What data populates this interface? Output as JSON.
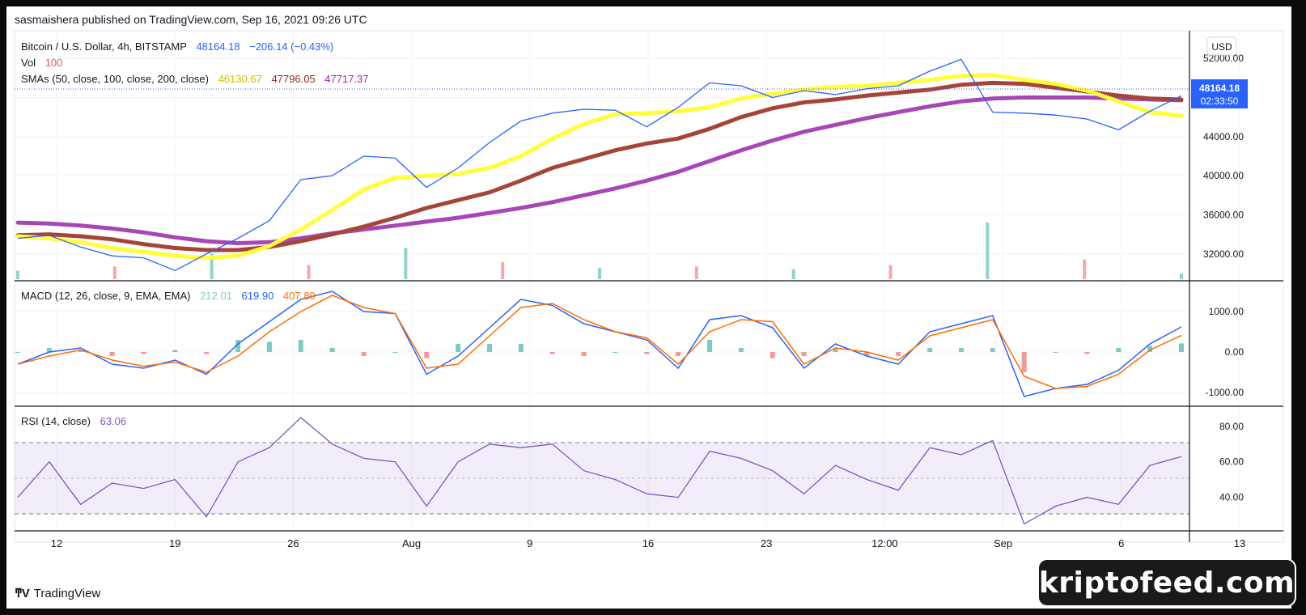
{
  "publisher": "sasmaishera published on TradingView.com, Sep 16, 2021 09:26 UTC",
  "legend": {
    "symbol": "Bitcoin / U.S. Dollar, 4h, BITSTAMP",
    "price": "48164.18",
    "change": "−206.14 (−0.43%)",
    "vol_label": "Vol",
    "vol_value": "100",
    "sma_label": "SMAs (50, close, 100, close, 200, close)",
    "sma50_value": "46130.67",
    "sma100_value": "47796.05",
    "sma200_value": "47717.37",
    "macd_label": "MACD (12, 26, close, 9, EMA, EMA)",
    "macd_hist_value": "212.01",
    "macd_value": "619.90",
    "macd_signal_value": "407.89",
    "rsi_label": "RSI (14, close)",
    "rsi_value": "63.06"
  },
  "price_axis": {
    "currency": "USD",
    "last_price": "48164.18",
    "countdown": "02:33:50"
  },
  "branding": {
    "tradingview": "TradingView",
    "watermark": "kriptofeed.com"
  },
  "colors": {
    "price": "#2962ff",
    "sma50": "#ffff3b",
    "sma100": "#a5453a",
    "sma200": "#a746b5",
    "macd": "#2962ff",
    "signal": "#ff6d00",
    "hist_up": "#26a69a",
    "hist_down": "#ef5350",
    "rsi": "#7e57c2"
  },
  "chart_data": [
    {
      "type": "line",
      "title": "Bitcoin / U.S. Dollar, 4h, BITSTAMP",
      "x_tick_labels": [
        "12",
        "19",
        "26",
        "Aug",
        "9",
        "16",
        "23",
        "12:00",
        "Sep",
        "6",
        "13"
      ],
      "x": [
        "Jul 10",
        "Jul 12",
        "Jul 14",
        "Jul 16",
        "Jul 18",
        "Jul 20",
        "Jul 21",
        "Jul 24",
        "Jul 26",
        "Jul 27",
        "Jul 28",
        "Jul 30",
        "Aug 1",
        "Aug 4",
        "Aug 6",
        "Aug 7",
        "Aug 9",
        "Aug 11",
        "Aug 13",
        "Aug 15",
        "Aug 17",
        "Aug 19",
        "Aug 21",
        "Aug 23",
        "Aug 25",
        "Aug 27",
        "Aug 29",
        "Aug 31",
        "Sep 2",
        "Sep 4",
        "Sep 6",
        "Sep 7",
        "Sep 8",
        "Sep 10",
        "Sep 12",
        "Sep 13",
        "Sep 14",
        "Sep 16"
      ],
      "y_tick_labels": [
        "32000.00",
        "36000.00",
        "40000.00",
        "44000.00",
        "48000.00",
        "52000.00"
      ],
      "ylim": [
        29500,
        54000
      ],
      "series": [
        {
          "name": "Bitcoin / U.S. Dollar",
          "values": [
            33600,
            33900,
            32700,
            31800,
            31600,
            30300,
            32000,
            33600,
            35400,
            39600,
            40000,
            42000,
            41800,
            38800,
            40800,
            43400,
            45600,
            46400,
            46800,
            46700,
            45000,
            47000,
            49500,
            49200,
            48000,
            48700,
            48300,
            48900,
            49200,
            50700,
            51900,
            46500,
            46400,
            46200,
            45800,
            44700,
            46600,
            48164
          ]
        },
        {
          "name": "SMA 50",
          "values": [
            33800,
            33600,
            33200,
            32600,
            32200,
            31800,
            31600,
            31800,
            32800,
            34500,
            36500,
            38600,
            39800,
            40000,
            40200,
            40800,
            42000,
            43800,
            45300,
            46300,
            46400,
            46600,
            47000,
            47900,
            48400,
            48800,
            49100,
            49200,
            49500,
            49800,
            50200,
            50300,
            49800,
            49400,
            48700,
            47600,
            46500,
            46130
          ]
        },
        {
          "name": "SMA 100",
          "values": [
            33900,
            34000,
            33800,
            33500,
            33000,
            32600,
            32400,
            32400,
            32700,
            33300,
            34000,
            34800,
            35700,
            36700,
            37500,
            38300,
            39500,
            40800,
            41700,
            42600,
            43300,
            43800,
            44800,
            46000,
            46900,
            47500,
            47800,
            48200,
            48500,
            48800,
            49300,
            49500,
            49400,
            49000,
            48600,
            48200,
            47900,
            47796
          ]
        },
        {
          "name": "SMA 200",
          "values": [
            35200,
            35100,
            34900,
            34600,
            34200,
            33700,
            33300,
            33100,
            33200,
            33600,
            34100,
            34500,
            34900,
            35300,
            35700,
            36200,
            36700,
            37300,
            38000,
            38700,
            39500,
            40400,
            41500,
            42600,
            43600,
            44500,
            45200,
            45900,
            46500,
            47100,
            47600,
            47900,
            48000,
            48000,
            48000,
            47900,
            47800,
            47717
          ]
        }
      ]
    },
    {
      "type": "bar",
      "title": "Vol",
      "note": "volume histogram, no axis scale shown",
      "x": [
        "Jul 10",
        "Jul 19",
        "Jul 26",
        "Aug 1",
        "Aug 6",
        "Aug 9",
        "Aug 16",
        "Aug 23",
        "Aug 30",
        "Sep 6",
        "Sep 7",
        "Sep 13",
        "Sep 16"
      ],
      "values": [
        6,
        9,
        18,
        10,
        22,
        12,
        8,
        9,
        7,
        10,
        40,
        14,
        4
      ]
    },
    {
      "type": "line",
      "title": "MACD (12, 26, close, 9, EMA, EMA)",
      "y_tick_labels": [
        "-1000.00",
        "0.00",
        "1000.00"
      ],
      "ylim": [
        -1300,
        1700
      ],
      "x": [
        "Jul 10",
        "Jul 12",
        "Jul 14",
        "Jul 16",
        "Jul 18",
        "Jul 20",
        "Jul 21",
        "Jul 24",
        "Jul 26",
        "Jul 27",
        "Jul 28",
        "Jul 30",
        "Aug 1",
        "Aug 4",
        "Aug 6",
        "Aug 7",
        "Aug 9",
        "Aug 11",
        "Aug 13",
        "Aug 15",
        "Aug 17",
        "Aug 19",
        "Aug 21",
        "Aug 23",
        "Aug 25",
        "Aug 27",
        "Aug 29",
        "Aug 31",
        "Sep 2",
        "Sep 4",
        "Sep 6",
        "Sep 7",
        "Sep 8",
        "Sep 10",
        "Sep 12",
        "Sep 13",
        "Sep 14",
        "Sep 16"
      ],
      "series": [
        {
          "name": "MACD",
          "values": [
            -300,
            0,
            100,
            -300,
            -400,
            -200,
            -550,
            200,
            750,
            1300,
            1500,
            1000,
            950,
            -550,
            -100,
            600,
            1300,
            1150,
            700,
            500,
            300,
            -400,
            800,
            900,
            600,
            -400,
            200,
            -100,
            -300,
            500,
            700,
            900,
            -1100,
            -900,
            -800,
            -450,
            200,
            620
          ]
        },
        {
          "name": "Signal",
          "values": [
            -300,
            -100,
            50,
            -200,
            -350,
            -250,
            -500,
            -100,
            500,
            1000,
            1400,
            1100,
            950,
            -400,
            -300,
            400,
            1100,
            1200,
            800,
            500,
            350,
            -300,
            500,
            800,
            750,
            -300,
            100,
            0,
            -200,
            400,
            600,
            800,
            -600,
            -900,
            -850,
            -550,
            50,
            408
          ]
        },
        {
          "name": "Histogram",
          "values": [
            0,
            100,
            50,
            -100,
            -50,
            50,
            -50,
            300,
            250,
            300,
            100,
            -100,
            0,
            -150,
            200,
            200,
            200,
            -50,
            -100,
            0,
            -50,
            -100,
            300,
            100,
            -150,
            -100,
            100,
            -100,
            -100,
            100,
            100,
            100,
            -500,
            0,
            -50,
            100,
            150,
            212
          ]
        }
      ]
    },
    {
      "type": "line",
      "title": "RSI (14, close)",
      "y_tick_labels": [
        "40.00",
        "60.00",
        "80.00"
      ],
      "ylim": [
        22,
        90
      ],
      "bands": [
        30,
        50,
        70
      ],
      "x": [
        "Jul 10",
        "Jul 12",
        "Jul 14",
        "Jul 16",
        "Jul 18",
        "Jul 20",
        "Jul 21",
        "Jul 24",
        "Jul 26",
        "Jul 27",
        "Jul 28",
        "Jul 30",
        "Aug 1",
        "Aug 4",
        "Aug 6",
        "Aug 7",
        "Aug 9",
        "Aug 11",
        "Aug 13",
        "Aug 15",
        "Aug 17",
        "Aug 19",
        "Aug 21",
        "Aug 23",
        "Aug 25",
        "Aug 27",
        "Aug 29",
        "Aug 31",
        "Sep 2",
        "Sep 4",
        "Sep 6",
        "Sep 7",
        "Sep 8",
        "Sep 10",
        "Sep 12",
        "Sep 13",
        "Sep 14",
        "Sep 16"
      ],
      "series": [
        {
          "name": "RSI",
          "values": [
            40,
            60,
            36,
            48,
            45,
            50,
            29,
            60,
            68,
            85,
            70,
            62,
            60,
            35,
            60,
            70,
            68,
            70,
            55,
            50,
            42,
            40,
            66,
            62,
            55,
            42,
            58,
            50,
            44,
            68,
            64,
            72,
            25,
            35,
            40,
            36,
            58,
            63
          ]
        }
      ]
    }
  ]
}
